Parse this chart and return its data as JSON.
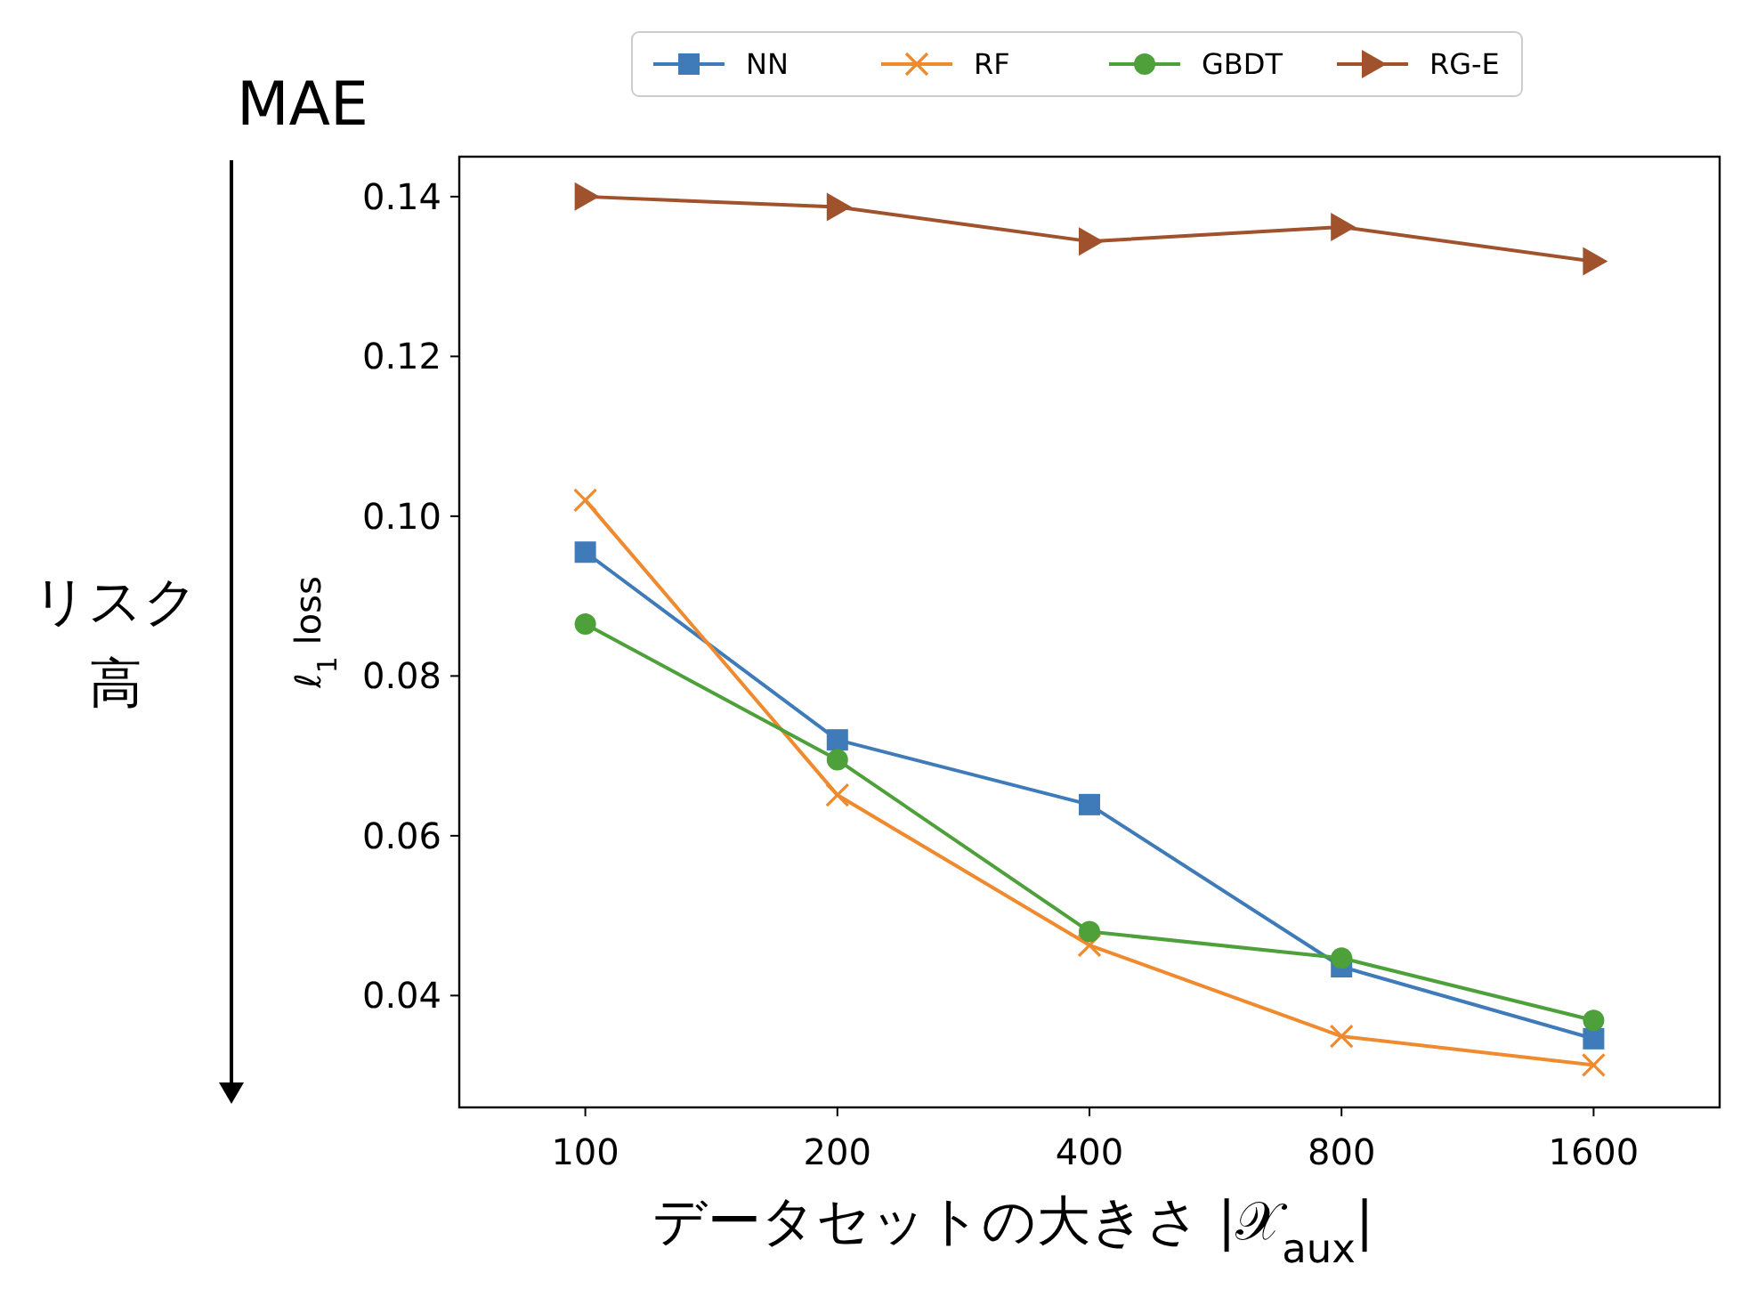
{
  "chart_data": {
    "type": "line",
    "xlabel": "データセットの大きさ |𝒳$_{aux}$|",
    "ylabel": "ℓ$_{1}$ loss",
    "categories": [
      "100",
      "200",
      "400",
      "800",
      "1600"
    ],
    "series": [
      {
        "name": "NN",
        "color": "#3e7bb8",
        "marker": "square",
        "values": [
          0.0955,
          0.072,
          0.0639,
          0.0436,
          0.0346
        ]
      },
      {
        "name": "RF",
        "color": "#ef8a2f",
        "marker": "cross",
        "values": [
          0.102,
          0.0651,
          0.0463,
          0.0349,
          0.0313
        ]
      },
      {
        "name": "GBDT",
        "color": "#4da03a",
        "marker": "circle",
        "values": [
          0.0865,
          0.0695,
          0.048,
          0.0447,
          0.0369
        ]
      },
      {
        "name": "RG-E",
        "color": "#a0522d",
        "marker": "triangle",
        "values": [
          0.14,
          0.1387,
          0.1344,
          0.1362,
          0.1319
        ]
      }
    ],
    "ylim": [
      0.026,
      0.145
    ],
    "yticks": [
      {
        "value": 0.04,
        "label": "0.04"
      },
      {
        "value": 0.06,
        "label": "0.06"
      },
      {
        "value": 0.08,
        "label": "0.08"
      },
      {
        "value": 0.1,
        "label": "0.10"
      },
      {
        "value": 0.12,
        "label": "0.12"
      },
      {
        "value": 0.14,
        "label": "0.14"
      }
    ],
    "grid": false,
    "legend": "top",
    "line_style": "solid",
    "annotations": [
      "MAE",
      "リスク",
      "高"
    ]
  }
}
